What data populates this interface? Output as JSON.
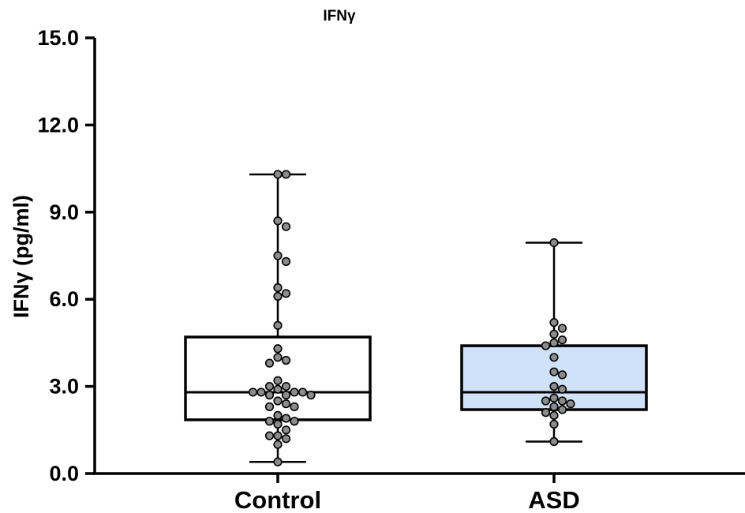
{
  "chart_data": {
    "type": "box",
    "title": "IFNγ",
    "ylabel": "IFNγ (pg/ml)",
    "xlabel": "",
    "ylim": [
      0,
      15
    ],
    "yticks": [
      "0.0",
      "3.0",
      "6.0",
      "9.0",
      "12.0",
      "15.0"
    ],
    "ytick_values": [
      0,
      3,
      6,
      9,
      12,
      15
    ],
    "categories": [
      "Control",
      "ASD"
    ],
    "groups": [
      {
        "category": "Control",
        "fill": "#ffffff",
        "min": 0.4,
        "q1": 1.85,
        "median": 2.8,
        "q3": 4.7,
        "max": 10.3,
        "points": [
          10.3,
          10.3,
          8.7,
          8.5,
          7.5,
          7.3,
          6.4,
          6.2,
          6.1,
          5.1,
          4.3,
          4.0,
          3.9,
          3.8,
          3.2,
          3.0,
          3.0,
          2.9,
          2.8,
          2.8,
          2.8,
          2.8,
          2.7,
          2.7,
          2.7,
          2.5,
          2.4,
          2.3,
          2.3,
          2.0,
          1.9,
          1.8,
          1.8,
          1.7,
          1.5,
          1.3,
          1.3,
          1.2,
          1.0,
          0.4
        ]
      },
      {
        "category": "ASD",
        "fill": "#cfe2f8",
        "min": 1.1,
        "q1": 2.2,
        "median": 2.8,
        "q3": 4.4,
        "max": 7.95,
        "points": [
          7.95,
          5.2,
          5.0,
          4.8,
          4.6,
          4.5,
          4.4,
          4.0,
          3.5,
          3.4,
          3.0,
          2.9,
          2.6,
          2.5,
          2.5,
          2.4,
          2.3,
          2.2,
          2.1,
          2.0,
          1.7,
          1.1
        ]
      }
    ],
    "grid": false,
    "legend": "none"
  }
}
